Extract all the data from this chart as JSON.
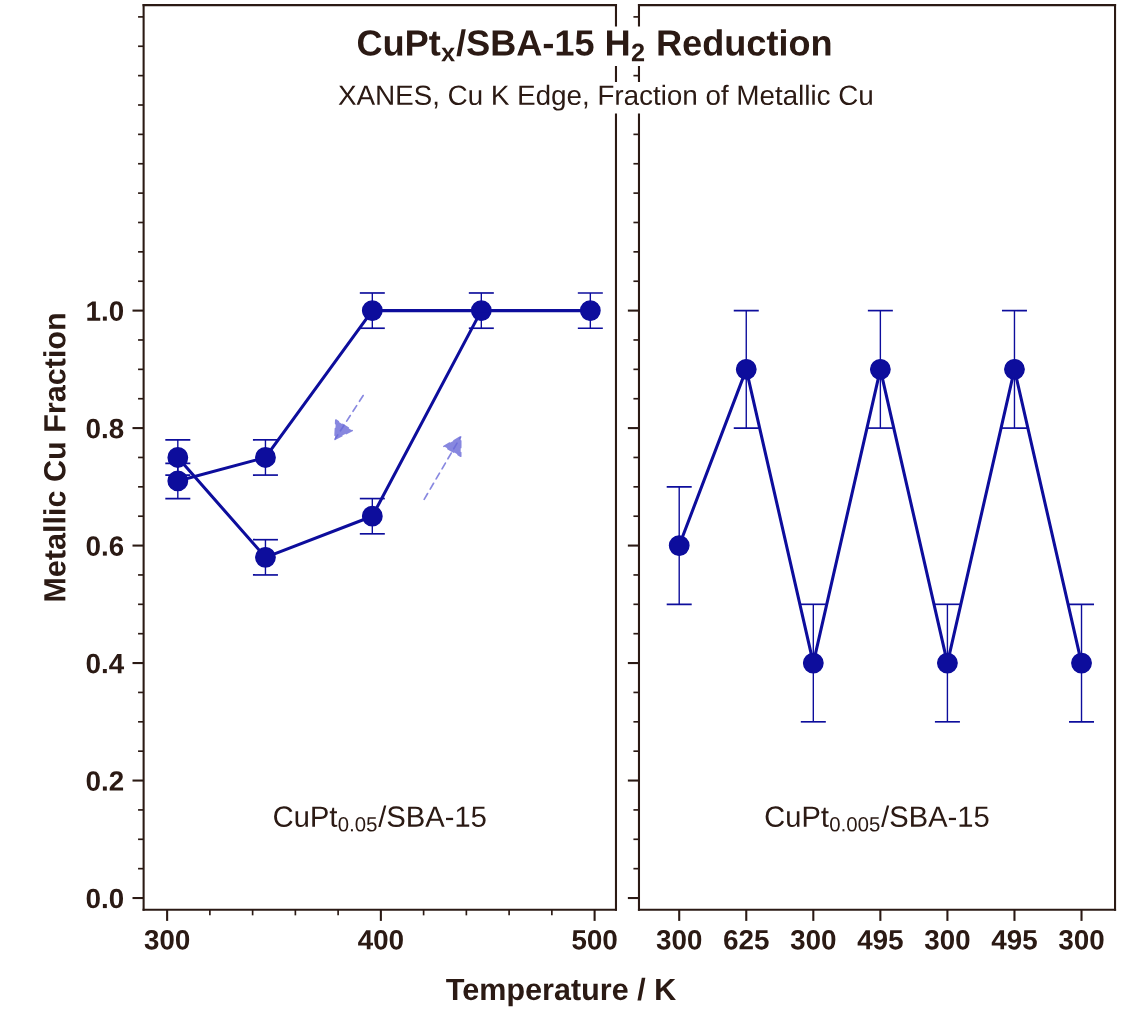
{
  "chart_data": [
    {
      "type": "line",
      "title": "CuPt$_{x}$/SBA-15 H$_{2}$ Reduction",
      "subtitle": "XANES, Cu K Edge, Fraction of Metallic Cu",
      "xlabel": "Temperature / K",
      "ylabel": "Metallic Cu Fraction",
      "xlim": [
        289,
        510
      ],
      "xticks": [
        300,
        400,
        500
      ],
      "ylim": [
        -0.02,
        1.52
      ],
      "yticks": [
        {
          "value": 0,
          "label": "0.0"
        },
        {
          "value": 0.2,
          "label": "0.2"
        },
        {
          "value": 0.4,
          "label": "0.4"
        },
        {
          "value": 0.6,
          "label": "0.6"
        },
        {
          "value": 0.8,
          "label": "0.8"
        },
        {
          "value": 1,
          "label": "1.0"
        }
      ],
      "marker": "circle",
      "line_style": "solid",
      "grid": false,
      "series": [
        {
          "color": "#0d0d9c",
          "x": [
            305,
            346,
            396,
            447
          ],
          "values": [
            0.75,
            0.58,
            0.65,
            1.0
          ],
          "errors": [
            0.03,
            0.03,
            0.03,
            0.03
          ]
        },
        {
          "color": "#0d0d9c",
          "x": [
            498,
            396,
            346,
            305
          ],
          "values": [
            1.0,
            1.0,
            0.75,
            0.71
          ],
          "errors": [
            0.03,
            0.03,
            0.03,
            0.03
          ]
        }
      ],
      "annotations": [
        "CuPt$_{0.05}$/SBA-15"
      ]
    },
    {
      "type": "line",
      "categories": [
        "300",
        "625",
        "300",
        "495",
        "300",
        "495",
        "300"
      ],
      "ylim": [
        -0.02,
        1.52
      ],
      "yticks": [
        {
          "value": 0,
          "label": null
        },
        {
          "value": 0.2,
          "label": null
        },
        {
          "value": 0.4,
          "label": null
        },
        {
          "value": 0.6,
          "label": null
        },
        {
          "value": 0.8,
          "label": null
        },
        {
          "value": 1,
          "label": null
        }
      ],
      "tick_labels": "x",
      "marker": "circle",
      "line_style": "solid",
      "grid": false,
      "series": [
        {
          "color": "#0d0d9c",
          "values": [
            0.6,
            0.9,
            0.4,
            0.9,
            0.4,
            0.9,
            0.4
          ],
          "errors": [
            0.1,
            0.1,
            0.1,
            0.1,
            0.1,
            0.1,
            0.1
          ]
        }
      ],
      "annotations": [
        "CuPt$_{0.005}$/SBA-15"
      ]
    }
  ]
}
